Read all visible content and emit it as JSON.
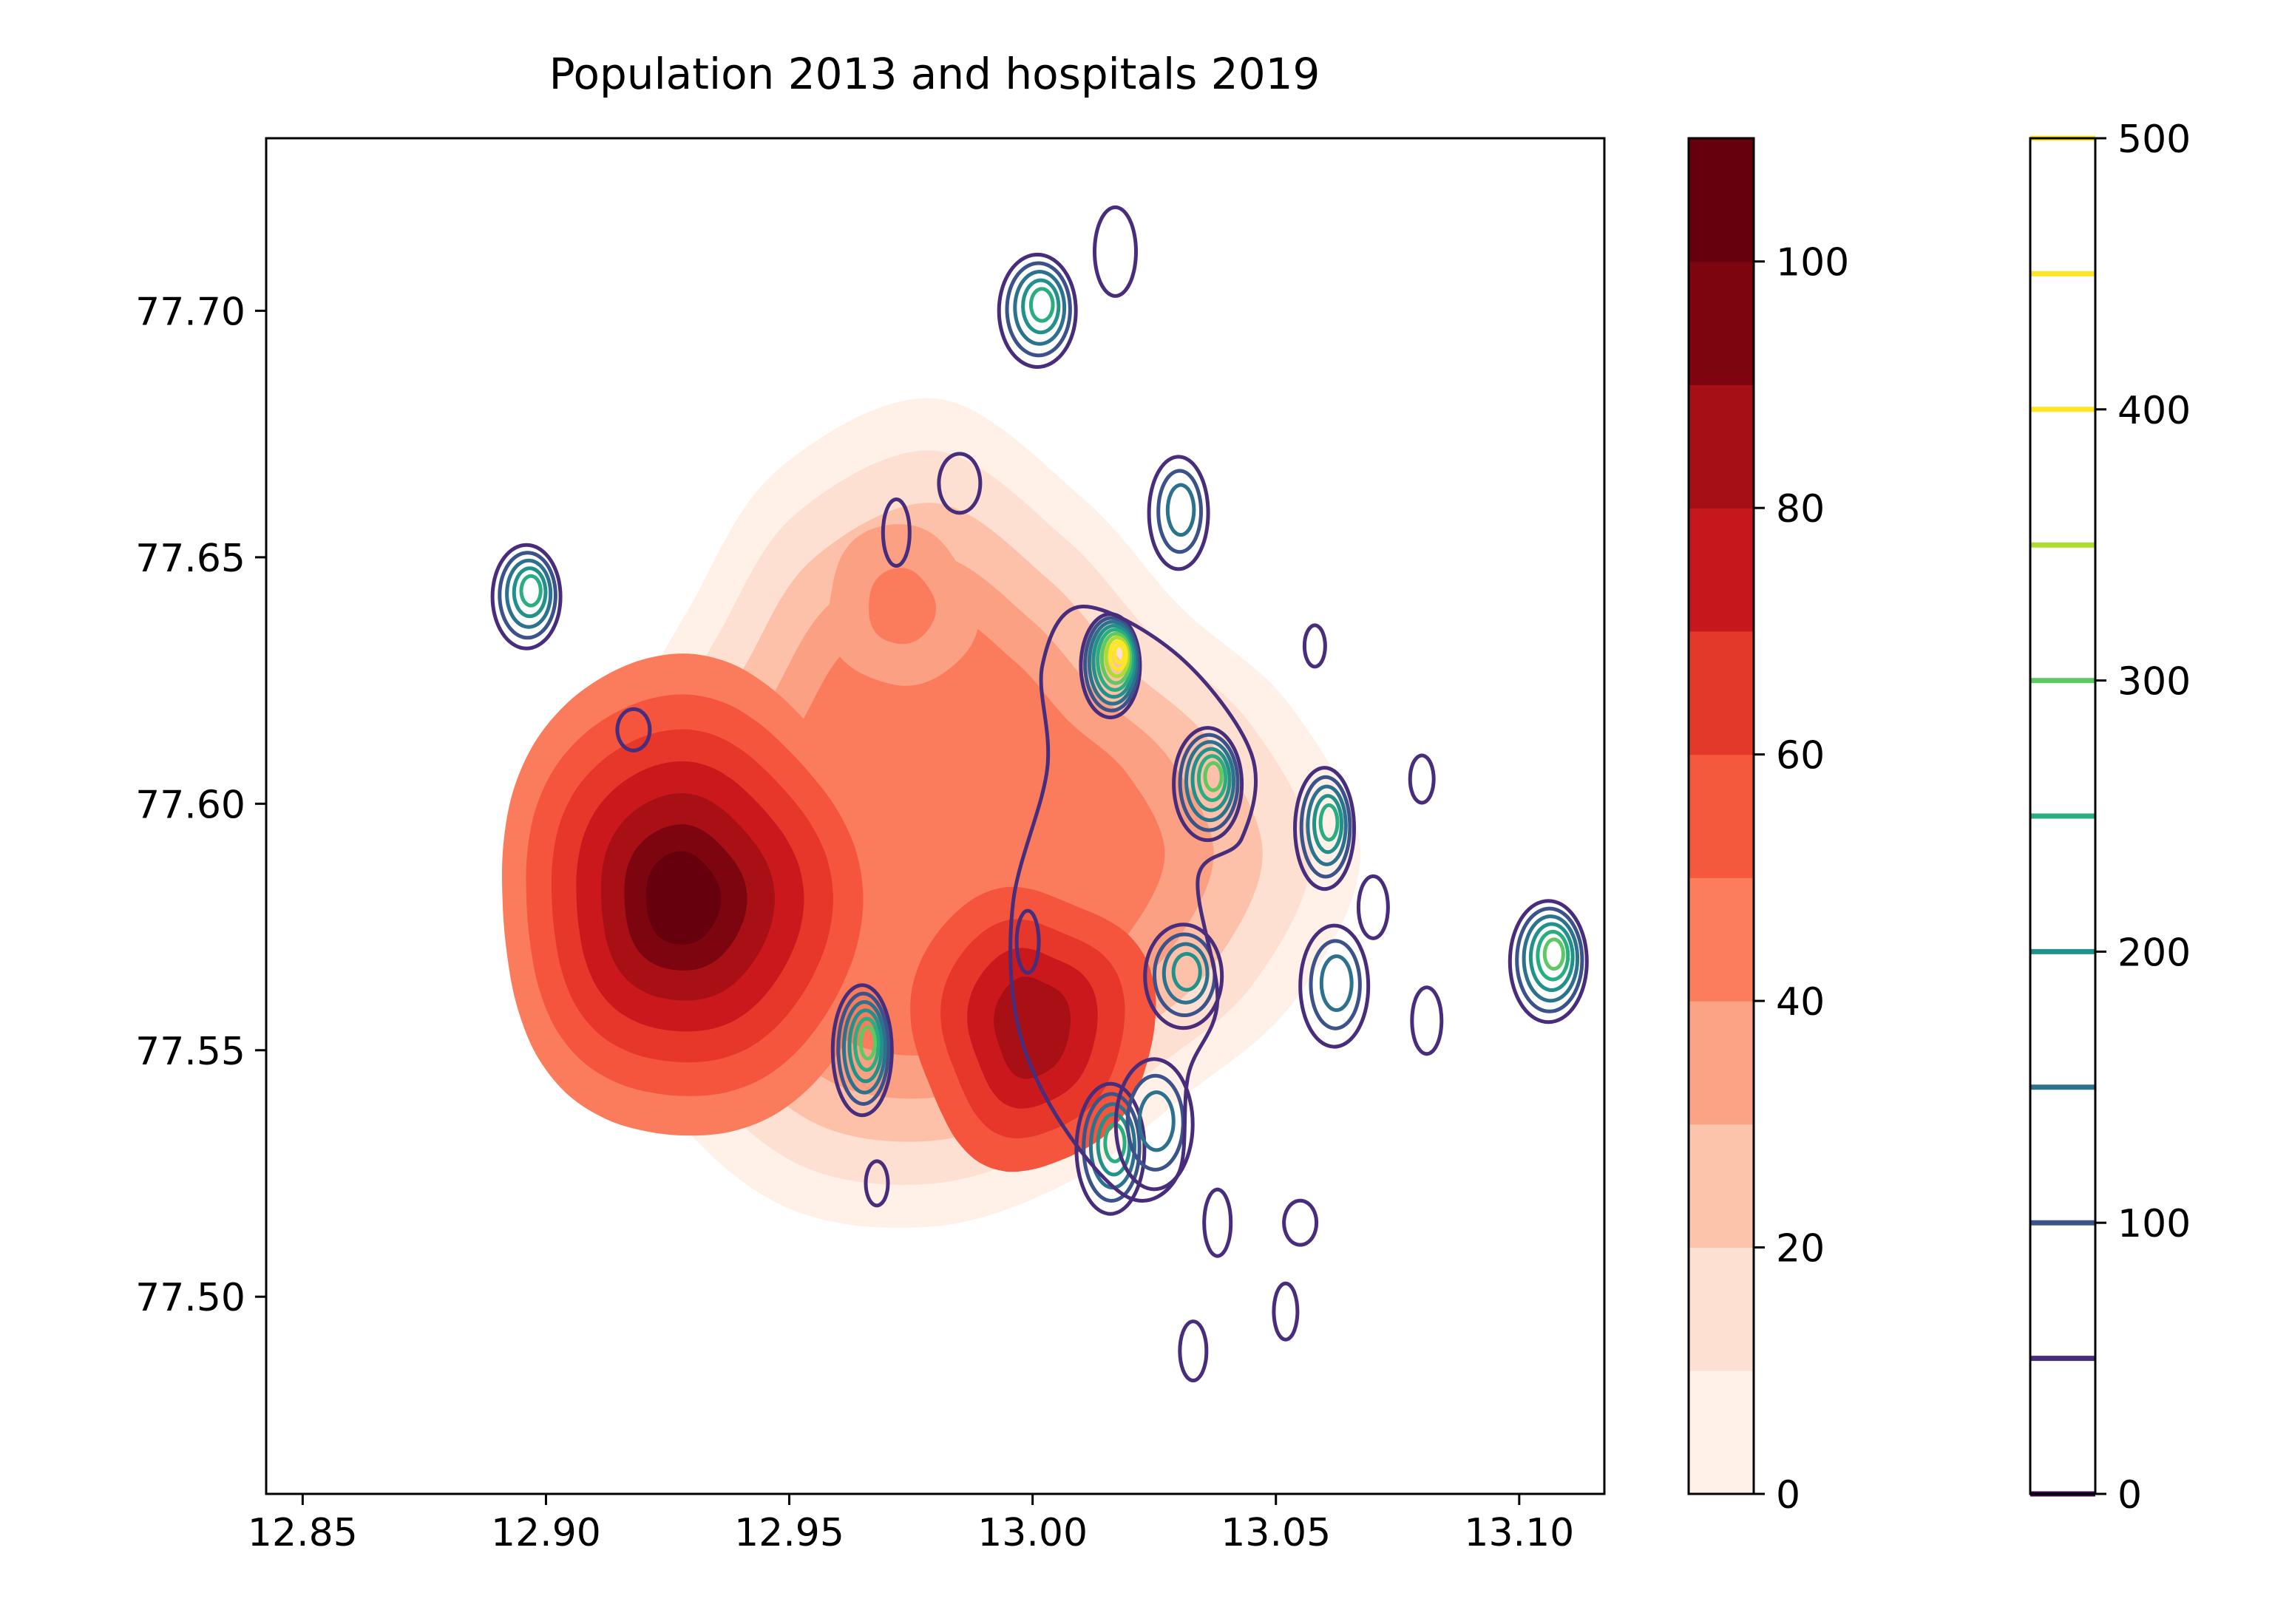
{
  "chart_data": {
    "type": "contour",
    "title": "Population 2013 and hospitals 2019",
    "xlabel": "",
    "ylabel": "",
    "xlim": [
      12.8425,
      13.1175
    ],
    "ylim": [
      77.46,
      77.735
    ],
    "x_ticks": [
      "12.85",
      "12.90",
      "12.95",
      "13.00",
      "13.05",
      "13.10"
    ],
    "y_ticks": [
      "77.50",
      "77.55",
      "77.60",
      "77.65",
      "77.70"
    ],
    "grid": false,
    "population_density": {
      "style": "filled contours",
      "colormap": "Reds",
      "levels": [
        0,
        10,
        20,
        30,
        40,
        50,
        60,
        70,
        80,
        90,
        100,
        110
      ],
      "level_colors": [
        "#fff0e8",
        "#fee0d2",
        "#fcc1a8",
        "#fca083",
        "#fb7c5c",
        "#f5553d",
        "#e7362a",
        "#cb181d",
        "#a91016",
        "#7c0510",
        "#67000d"
      ],
      "peaks": [
        {
          "x": 12.928,
          "y": 77.58,
          "value": 108
        },
        {
          "x": 12.998,
          "y": 77.557,
          "value": 85
        },
        {
          "x": 12.973,
          "y": 77.64,
          "value": 52
        }
      ]
    },
    "hospital_density": {
      "style": "line contours",
      "colormap": "viridis",
      "levels": [
        0,
        50,
        100,
        150,
        200,
        250,
        300,
        350,
        400,
        450,
        500
      ],
      "level_colors": [
        "#440154",
        "#472d7b",
        "#3b528b",
        "#2c728e",
        "#21918c",
        "#28ae80",
        "#5ec962",
        "#addc30",
        "#fde725",
        "#fde725",
        "#fde725"
      ],
      "peaks": [
        {
          "x": 13.016,
          "y": 77.628,
          "value": 450
        },
        {
          "x": 13.036,
          "y": 77.604,
          "value": 320
        },
        {
          "x": 13.106,
          "y": 77.568,
          "value": 300
        },
        {
          "x": 12.965,
          "y": 77.55,
          "value": 290
        },
        {
          "x": 12.896,
          "y": 77.642,
          "value": 260
        },
        {
          "x": 13.001,
          "y": 77.7,
          "value": 250
        },
        {
          "x": 13.06,
          "y": 77.595,
          "value": 240
        },
        {
          "x": 13.016,
          "y": 77.53,
          "value": 230
        },
        {
          "x": 13.031,
          "y": 77.565,
          "value": 180
        },
        {
          "x": 13.03,
          "y": 77.659,
          "value": 170
        },
        {
          "x": 13.062,
          "y": 77.563,
          "value": 160
        },
        {
          "x": 13.025,
          "y": 77.535,
          "value": 150
        }
      ]
    },
    "colorbars": [
      {
        "label": "",
        "ticks": [
          "0",
          "20",
          "40",
          "60",
          "80",
          "100"
        ],
        "range": [
          0,
          110
        ],
        "style": "filled"
      },
      {
        "label": "",
        "ticks": [
          "0",
          "100",
          "200",
          "300",
          "400",
          "500"
        ],
        "range": [
          0,
          500
        ],
        "style": "lines"
      }
    ]
  }
}
